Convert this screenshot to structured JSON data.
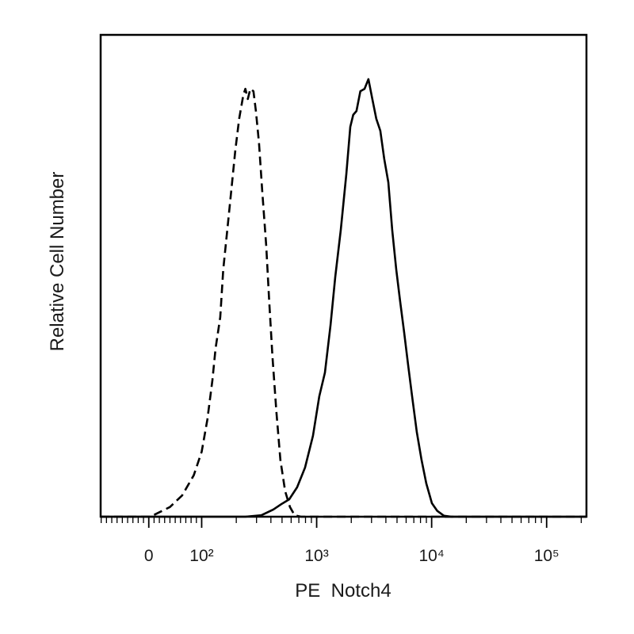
{
  "chart_data": {
    "type": "histogram-overlay",
    "x_label": "PE  Notch4",
    "y_label": "Relative Cell Number",
    "xscale": "biexponential",
    "xlim": [
      -91,
      222000
    ],
    "ylim": [
      0,
      100
    ],
    "xticks": [
      0,
      {
        "value": 100,
        "label": "10²"
      },
      {
        "value": 1000,
        "label": "10³"
      },
      {
        "value": 10000,
        "label": "10⁴"
      },
      {
        "value": 100000,
        "label": "10⁵"
      }
    ],
    "xminorticks": [
      -90,
      -80,
      -70,
      -60,
      -50,
      -40,
      -30,
      -20,
      -10,
      10,
      20,
      30,
      40,
      50,
      60,
      70,
      80,
      90,
      200,
      300,
      400,
      500,
      600,
      700,
      800,
      900,
      2000,
      3000,
      4000,
      5000,
      6000,
      7000,
      8000,
      9000,
      20000,
      30000,
      40000,
      50000,
      60000,
      70000,
      80000,
      90000,
      200000
    ],
    "series": [
      {
        "style": "dashed",
        "color": "#000000",
        "x": [
          -91,
          3,
          18,
          40,
          63,
          85,
          100,
          112,
          124,
          132,
          145,
          154,
          167,
          181,
          196,
          212,
          230,
          240,
          252,
          265,
          282,
          296,
          315,
          336,
          364,
          387,
          413,
          447,
          484,
          532,
          586,
          644,
          731,
          222000
        ],
        "values": [
          0,
          0,
          0.8,
          2,
          4.4,
          8.6,
          13.5,
          20.1,
          28.3,
          34.9,
          41.4,
          51.3,
          59.5,
          67.8,
          76,
          82.6,
          87.5,
          88.8,
          86.7,
          88.8,
          88.3,
          84.2,
          77.6,
          67.8,
          56.3,
          44.7,
          33.2,
          21.7,
          11.8,
          5.3,
          2,
          0.3,
          0,
          0
        ]
      },
      {
        "style": "solid",
        "color": "#000000",
        "x": [
          -91,
          240,
          330,
          420,
          492,
          577,
          676,
          792,
          929,
          1054,
          1180,
          1320,
          1450,
          1620,
          1810,
          1960,
          2080,
          2220,
          2400,
          2610,
          2820,
          3050,
          3300,
          3580,
          3870,
          4200,
          4540,
          4920,
          5320,
          5770,
          6240,
          6760,
          7430,
          8170,
          8990,
          10050,
          11200,
          12800,
          14900,
          222000
        ],
        "values": [
          0,
          0,
          0.3,
          1.5,
          2.6,
          3.6,
          6.1,
          10.2,
          16.8,
          25,
          29.9,
          39.8,
          49.7,
          59.5,
          71.1,
          80.9,
          83.4,
          84.2,
          88.3,
          88.8,
          90.8,
          86.7,
          82.6,
          80.1,
          74.3,
          69.4,
          59.5,
          51.3,
          44.7,
          38.2,
          31.6,
          25,
          17.6,
          11.8,
          6.9,
          2.8,
          1.2,
          0.2,
          0,
          0
        ]
      }
    ]
  }
}
